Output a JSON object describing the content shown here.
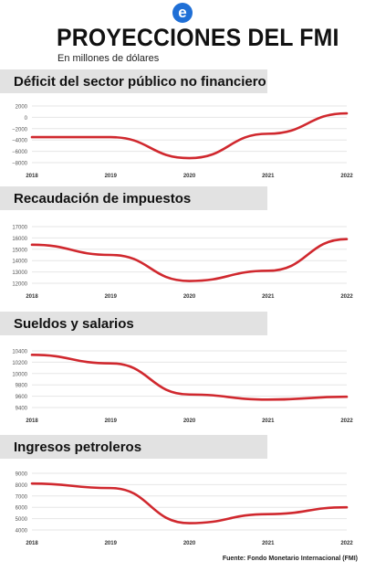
{
  "header": {
    "logo_letter": "e",
    "title": "PROYECCIONES DEL FMI",
    "subtitle": "En millones de dólares",
    "source": "Fuente: Fondo Monetario Internacional (FMI)"
  },
  "colors": {
    "line": "#d0282e",
    "band": "#e2e2e2",
    "logo": "#1f6fd6"
  },
  "chart_data": [
    {
      "type": "line",
      "title": "Déficit del sector público no financiero",
      "categories": [
        "2018",
        "2019",
        "2020",
        "2021",
        "2022"
      ],
      "values": [
        -3500,
        -3500,
        -7200,
        -2900,
        700
      ],
      "yticks": [
        2000,
        0,
        -2000,
        -4000,
        -6000,
        -8000
      ],
      "ytick_labels": [
        "2000",
        "0",
        "−2000",
        "−4000",
        "−6000",
        "−8000"
      ],
      "ylim": [
        -8000,
        2000
      ],
      "grid": true
    },
    {
      "type": "line",
      "title": "Recaudación de impuestos",
      "categories": [
        "2018",
        "2019",
        "2020",
        "2021",
        "2022"
      ],
      "values": [
        15400,
        14500,
        12200,
        13100,
        15900
      ],
      "yticks": [
        17000,
        16000,
        15000,
        14000,
        13000,
        12000
      ],
      "ytick_labels": [
        "17000",
        "16000",
        "15000",
        "14000",
        "13000",
        "12000"
      ],
      "ylim": [
        12000,
        17000
      ],
      "grid": true
    },
    {
      "type": "line",
      "title": "Sueldos y salarios",
      "categories": [
        "2018",
        "2019",
        "2020",
        "2021",
        "2022"
      ],
      "values": [
        10330,
        10180,
        9630,
        9540,
        9590
      ],
      "yticks": [
        10400,
        10200,
        10000,
        9800,
        9600,
        9400
      ],
      "ytick_labels": [
        "10400",
        "10200",
        "10000",
        "9800",
        "9600",
        "9400"
      ],
      "ylim": [
        9400,
        10400
      ],
      "grid": true
    },
    {
      "type": "line",
      "title": "Ingresos petroleros",
      "categories": [
        "2018",
        "2019",
        "2020",
        "2021",
        "2022"
      ],
      "values": [
        8100,
        7700,
        4600,
        5400,
        6000
      ],
      "yticks": [
        9000,
        8000,
        7000,
        6000,
        5000,
        4000
      ],
      "ytick_labels": [
        "9000",
        "8000",
        "7000",
        "6000",
        "5000",
        "4000"
      ],
      "ylim": [
        4000,
        9000
      ],
      "grid": true
    }
  ]
}
